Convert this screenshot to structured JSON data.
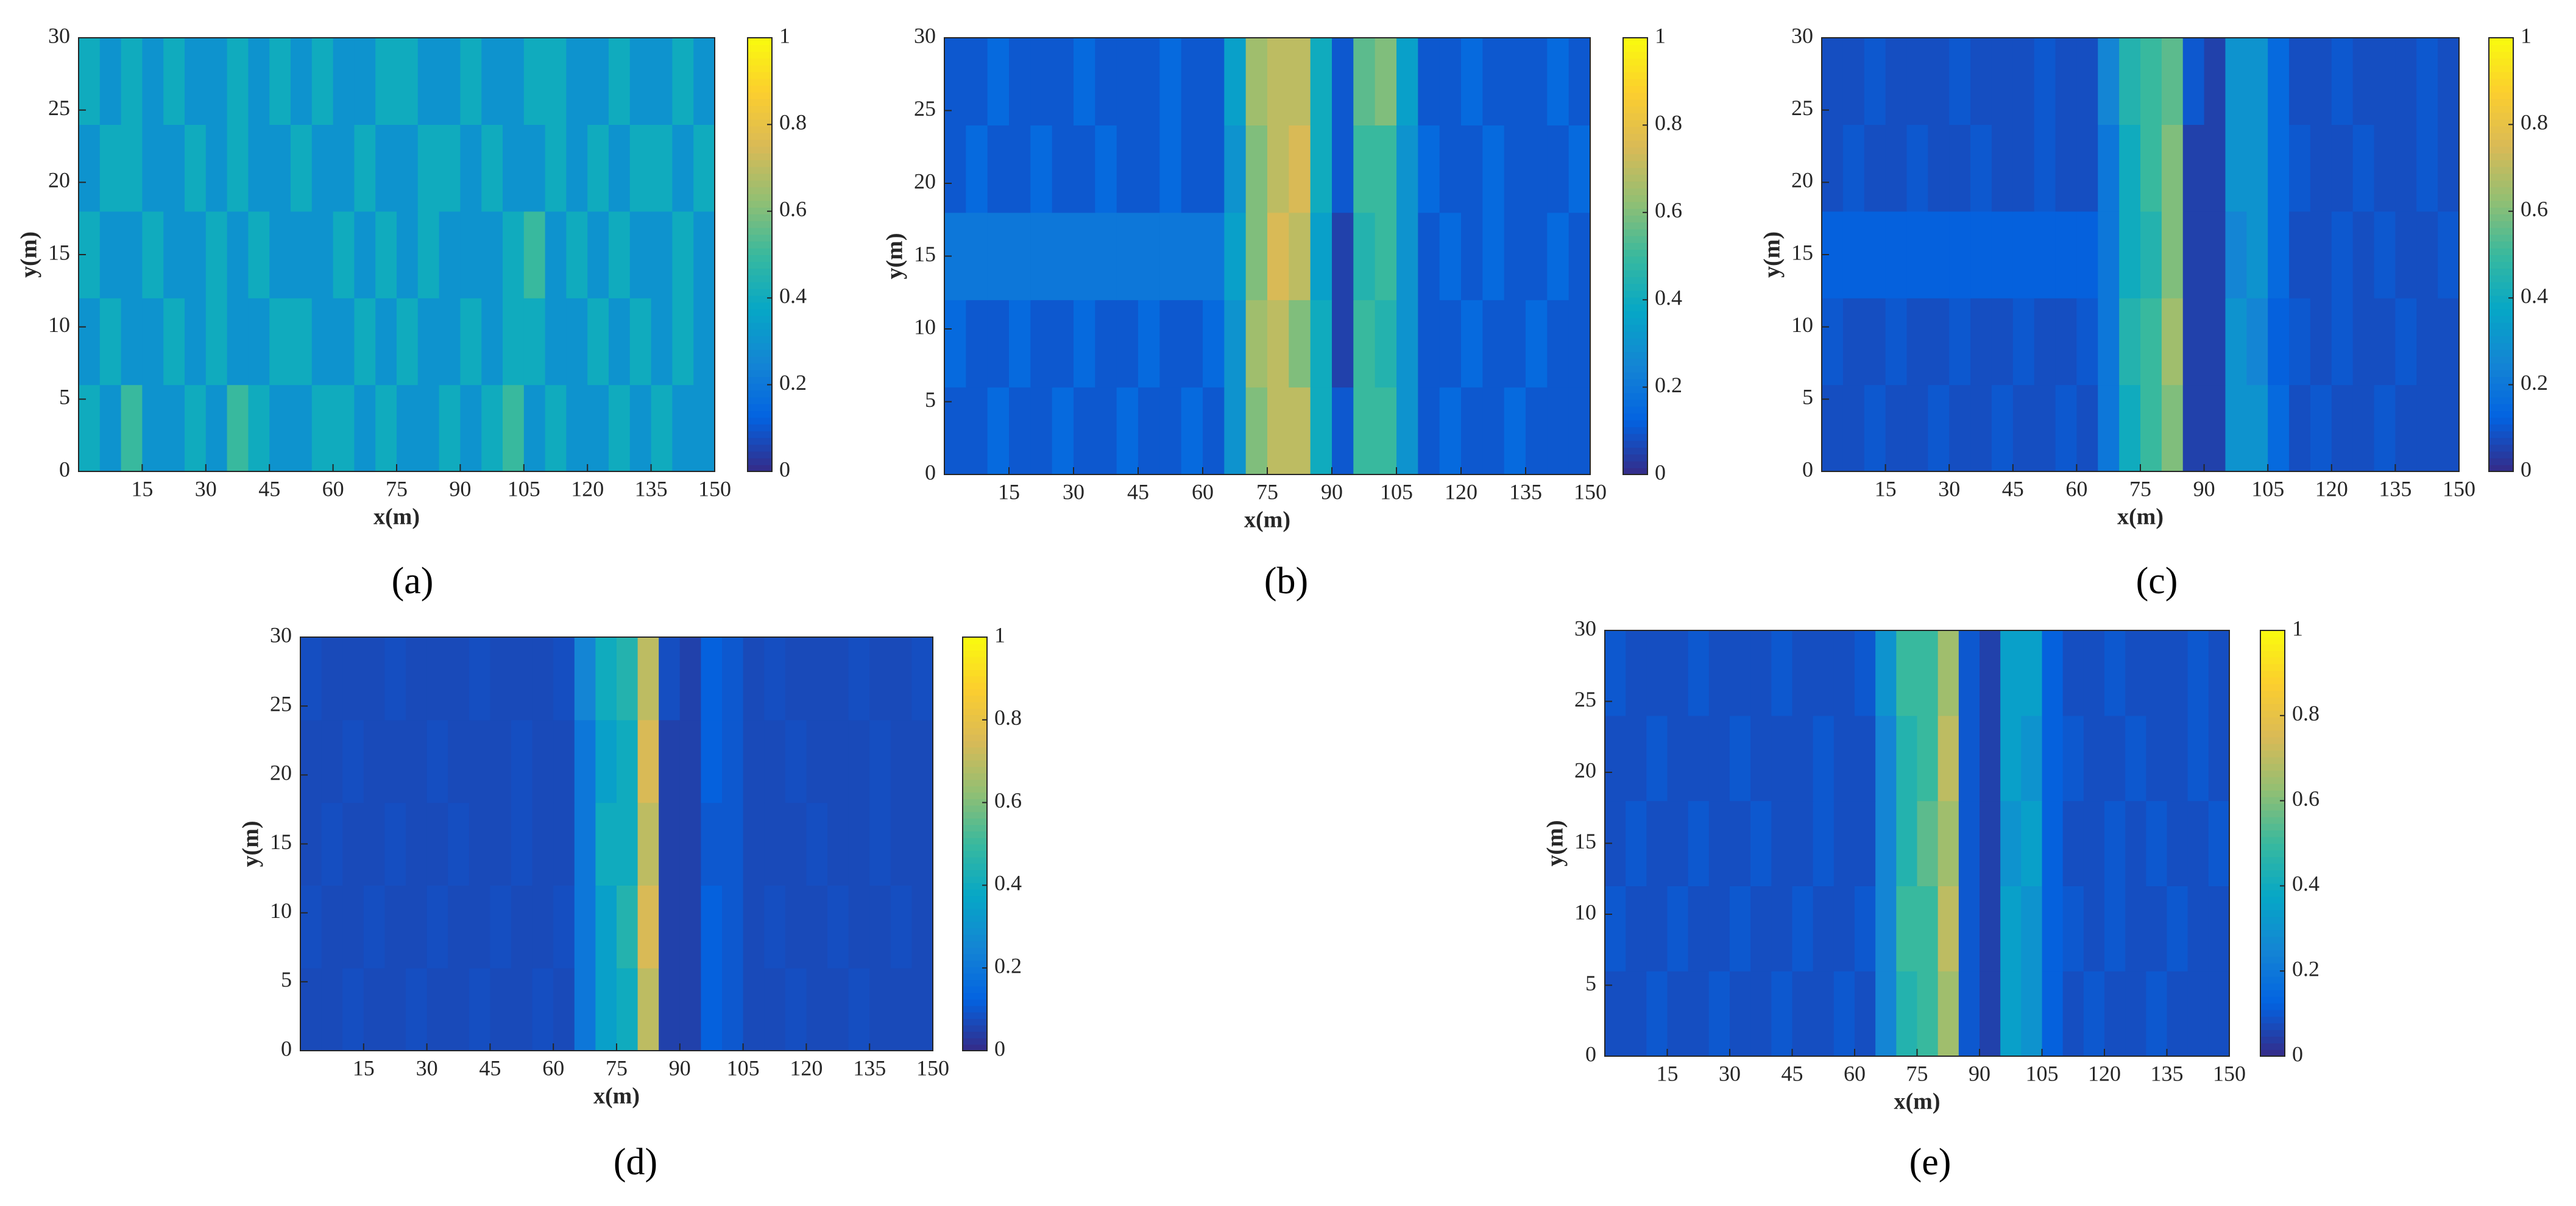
{
  "chart_data": [
    {
      "type": "heatmap",
      "label": "(a)",
      "xlabel": "x(m)",
      "ylabel": "y(m)",
      "x": [
        2.5,
        7.5,
        12.5,
        17.5,
        22.5,
        27.5,
        32.5,
        37.5,
        42.5,
        47.5,
        52.5,
        57.5,
        62.5,
        67.5,
        72.5,
        77.5,
        82.5,
        87.5,
        92.5,
        97.5,
        102.5,
        107.5,
        112.5,
        117.5,
        122.5,
        127.5,
        132.5,
        137.5,
        142.5,
        147.5
      ],
      "y": [
        3,
        9,
        15,
        21,
        27
      ],
      "z": [
        [
          0.4,
          0.3,
          0.5,
          0.3,
          0.3,
          0.4,
          0.3,
          0.5,
          0.4,
          0.3,
          0.3,
          0.4,
          0.4,
          0.3,
          0.4,
          0.3,
          0.3,
          0.4,
          0.3,
          0.4,
          0.5,
          0.3,
          0.4,
          0.3,
          0.3,
          0.4,
          0.3,
          0.4,
          0.3,
          0.3
        ],
        [
          0.3,
          0.4,
          0.3,
          0.3,
          0.4,
          0.3,
          0.4,
          0.3,
          0.3,
          0.4,
          0.4,
          0.3,
          0.3,
          0.4,
          0.3,
          0.4,
          0.3,
          0.3,
          0.4,
          0.3,
          0.4,
          0.4,
          0.3,
          0.3,
          0.4,
          0.3,
          0.4,
          0.3,
          0.4,
          0.3
        ],
        [
          0.4,
          0.3,
          0.3,
          0.4,
          0.3,
          0.3,
          0.4,
          0.3,
          0.4,
          0.3,
          0.3,
          0.3,
          0.4,
          0.3,
          0.4,
          0.3,
          0.4,
          0.3,
          0.3,
          0.3,
          0.4,
          0.5,
          0.3,
          0.4,
          0.3,
          0.4,
          0.3,
          0.3,
          0.4,
          0.3
        ],
        [
          0.3,
          0.4,
          0.4,
          0.3,
          0.3,
          0.4,
          0.3,
          0.4,
          0.3,
          0.3,
          0.4,
          0.3,
          0.3,
          0.4,
          0.3,
          0.3,
          0.4,
          0.4,
          0.3,
          0.4,
          0.3,
          0.3,
          0.4,
          0.3,
          0.4,
          0.3,
          0.4,
          0.4,
          0.3,
          0.4
        ],
        [
          0.4,
          0.3,
          0.4,
          0.3,
          0.4,
          0.3,
          0.3,
          0.4,
          0.3,
          0.4,
          0.3,
          0.4,
          0.3,
          0.3,
          0.4,
          0.4,
          0.3,
          0.3,
          0.4,
          0.3,
          0.3,
          0.4,
          0.4,
          0.3,
          0.3,
          0.4,
          0.3,
          0.3,
          0.4,
          0.3
        ]
      ],
      "xlim": [
        0,
        150
      ],
      "ylim": [
        0,
        30
      ],
      "xticks": [
        15,
        30,
        45,
        60,
        75,
        90,
        105,
        120,
        135,
        150
      ],
      "yticks": [
        0,
        5,
        10,
        15,
        20,
        25,
        30
      ],
      "colormap": "parula",
      "clim": [
        0,
        1
      ],
      "cticks": [
        0,
        0.2,
        0.4,
        0.6,
        0.8,
        1
      ]
    },
    {
      "type": "heatmap",
      "label": "(b)",
      "xlabel": "x(m)",
      "ylabel": "y(m)",
      "x": [
        2.5,
        7.5,
        12.5,
        17.5,
        22.5,
        27.5,
        32.5,
        37.5,
        42.5,
        47.5,
        52.5,
        57.5,
        62.5,
        67.5,
        72.5,
        77.5,
        82.5,
        87.5,
        92.5,
        97.5,
        102.5,
        107.5,
        112.5,
        117.5,
        122.5,
        127.5,
        132.5,
        137.5,
        142.5,
        147.5
      ],
      "y": [
        3,
        9,
        15,
        21,
        27
      ],
      "z": [
        [
          0.1,
          0.1,
          0.15,
          0.1,
          0.1,
          0.15,
          0.1,
          0.1,
          0.15,
          0.1,
          0.1,
          0.15,
          0.1,
          0.3,
          0.6,
          0.7,
          0.7,
          0.4,
          0.1,
          0.5,
          0.5,
          0.3,
          0.1,
          0.15,
          0.1,
          0.1,
          0.15,
          0.1,
          0.1,
          0.1
        ],
        [
          0.15,
          0.1,
          0.1,
          0.15,
          0.1,
          0.1,
          0.15,
          0.1,
          0.1,
          0.15,
          0.1,
          0.1,
          0.15,
          0.3,
          0.65,
          0.7,
          0.6,
          0.4,
          0.05,
          0.5,
          0.45,
          0.3,
          0.1,
          0.1,
          0.15,
          0.1,
          0.1,
          0.15,
          0.1,
          0.1
        ],
        [
          0.2,
          0.2,
          0.2,
          0.2,
          0.2,
          0.2,
          0.2,
          0.2,
          0.2,
          0.2,
          0.2,
          0.2,
          0.2,
          0.35,
          0.6,
          0.75,
          0.7,
          0.35,
          0.05,
          0.45,
          0.5,
          0.3,
          0.1,
          0.15,
          0.1,
          0.15,
          0.1,
          0.1,
          0.15,
          0.1
        ],
        [
          0.1,
          0.15,
          0.1,
          0.1,
          0.15,
          0.1,
          0.1,
          0.15,
          0.1,
          0.1,
          0.15,
          0.1,
          0.1,
          0.3,
          0.6,
          0.7,
          0.75,
          0.4,
          0.1,
          0.5,
          0.5,
          0.3,
          0.15,
          0.1,
          0.1,
          0.15,
          0.1,
          0.1,
          0.1,
          0.15
        ],
        [
          0.1,
          0.1,
          0.15,
          0.1,
          0.1,
          0.1,
          0.15,
          0.1,
          0.1,
          0.1,
          0.15,
          0.1,
          0.1,
          0.35,
          0.65,
          0.7,
          0.7,
          0.4,
          0.1,
          0.55,
          0.6,
          0.35,
          0.1,
          0.1,
          0.15,
          0.1,
          0.1,
          0.1,
          0.15,
          0.1
        ]
      ],
      "xlim": [
        0,
        150
      ],
      "ylim": [
        0,
        30
      ],
      "xticks": [
        15,
        30,
        45,
        60,
        75,
        90,
        105,
        120,
        135,
        150
      ],
      "yticks": [
        0,
        5,
        10,
        15,
        20,
        25,
        30
      ],
      "colormap": "parula",
      "clim": [
        0,
        1
      ],
      "cticks": [
        0,
        0.2,
        0.4,
        0.6,
        0.8,
        1
      ]
    },
    {
      "type": "heatmap",
      "label": "(c)",
      "xlabel": "x(m)",
      "ylabel": "y(m)",
      "x": [
        2.5,
        7.5,
        12.5,
        17.5,
        22.5,
        27.5,
        32.5,
        37.5,
        42.5,
        47.5,
        52.5,
        57.5,
        62.5,
        67.5,
        72.5,
        77.5,
        82.5,
        87.5,
        92.5,
        97.5,
        102.5,
        107.5,
        112.5,
        117.5,
        122.5,
        127.5,
        132.5,
        137.5,
        142.5,
        147.5
      ],
      "y": [
        3,
        9,
        15,
        21,
        27
      ],
      "z": [
        [
          0.08,
          0.08,
          0.1,
          0.08,
          0.08,
          0.1,
          0.08,
          0.08,
          0.1,
          0.08,
          0.08,
          0.1,
          0.08,
          0.2,
          0.4,
          0.5,
          0.6,
          0.05,
          0.05,
          0.3,
          0.3,
          0.15,
          0.08,
          0.1,
          0.08,
          0.08,
          0.1,
          0.08,
          0.08,
          0.08
        ],
        [
          0.1,
          0.08,
          0.08,
          0.1,
          0.08,
          0.08,
          0.1,
          0.08,
          0.08,
          0.1,
          0.08,
          0.08,
          0.1,
          0.2,
          0.45,
          0.5,
          0.65,
          0.05,
          0.05,
          0.3,
          0.25,
          0.12,
          0.1,
          0.08,
          0.1,
          0.08,
          0.08,
          0.1,
          0.08,
          0.08
        ],
        [
          0.12,
          0.12,
          0.12,
          0.12,
          0.12,
          0.12,
          0.12,
          0.12,
          0.12,
          0.12,
          0.12,
          0.12,
          0.12,
          0.2,
          0.4,
          0.45,
          0.6,
          0.05,
          0.05,
          0.25,
          0.3,
          0.15,
          0.08,
          0.08,
          0.1,
          0.08,
          0.1,
          0.08,
          0.08,
          0.1
        ],
        [
          0.08,
          0.1,
          0.08,
          0.08,
          0.1,
          0.08,
          0.08,
          0.1,
          0.08,
          0.08,
          0.1,
          0.08,
          0.08,
          0.2,
          0.4,
          0.5,
          0.6,
          0.05,
          0.05,
          0.3,
          0.3,
          0.15,
          0.1,
          0.08,
          0.08,
          0.1,
          0.08,
          0.08,
          0.1,
          0.08
        ],
        [
          0.08,
          0.08,
          0.1,
          0.08,
          0.08,
          0.08,
          0.1,
          0.08,
          0.08,
          0.08,
          0.1,
          0.08,
          0.08,
          0.25,
          0.45,
          0.5,
          0.55,
          0.1,
          0.05,
          0.3,
          0.3,
          0.15,
          0.08,
          0.08,
          0.1,
          0.08,
          0.08,
          0.08,
          0.1,
          0.08
        ]
      ],
      "xlim": [
        0,
        150
      ],
      "ylim": [
        0,
        30
      ],
      "xticks": [
        15,
        30,
        45,
        60,
        75,
        90,
        105,
        120,
        135,
        150
      ],
      "yticks": [
        0,
        5,
        10,
        15,
        20,
        25,
        30
      ],
      "colormap": "parula",
      "clim": [
        0,
        1
      ],
      "cticks": [
        0,
        0.2,
        0.4,
        0.6,
        0.8,
        1
      ]
    },
    {
      "type": "heatmap",
      "label": "(d)",
      "xlabel": "x(m)",
      "ylabel": "y(m)",
      "x": [
        2.5,
        7.5,
        12.5,
        17.5,
        22.5,
        27.5,
        32.5,
        37.5,
        42.5,
        47.5,
        52.5,
        57.5,
        62.5,
        67.5,
        72.5,
        77.5,
        82.5,
        87.5,
        92.5,
        97.5,
        102.5,
        107.5,
        112.5,
        117.5,
        122.5,
        127.5,
        132.5,
        137.5,
        142.5,
        147.5
      ],
      "y": [
        3,
        9,
        15,
        21,
        27
      ],
      "z": [
        [
          0.07,
          0.07,
          0.08,
          0.07,
          0.07,
          0.08,
          0.07,
          0.07,
          0.08,
          0.07,
          0.07,
          0.08,
          0.07,
          0.2,
          0.35,
          0.4,
          0.7,
          0.05,
          0.05,
          0.12,
          0.1,
          0.07,
          0.07,
          0.08,
          0.07,
          0.07,
          0.08,
          0.07,
          0.07,
          0.07
        ],
        [
          0.08,
          0.07,
          0.07,
          0.08,
          0.07,
          0.07,
          0.08,
          0.07,
          0.07,
          0.08,
          0.07,
          0.07,
          0.08,
          0.2,
          0.35,
          0.45,
          0.75,
          0.05,
          0.05,
          0.12,
          0.1,
          0.07,
          0.08,
          0.07,
          0.07,
          0.08,
          0.07,
          0.07,
          0.08,
          0.07
        ],
        [
          0.07,
          0.08,
          0.07,
          0.07,
          0.08,
          0.07,
          0.07,
          0.08,
          0.07,
          0.07,
          0.08,
          0.07,
          0.07,
          0.2,
          0.4,
          0.4,
          0.7,
          0.05,
          0.05,
          0.1,
          0.1,
          0.07,
          0.07,
          0.07,
          0.08,
          0.07,
          0.07,
          0.08,
          0.07,
          0.07
        ],
        [
          0.07,
          0.07,
          0.08,
          0.07,
          0.07,
          0.07,
          0.08,
          0.07,
          0.07,
          0.07,
          0.08,
          0.07,
          0.07,
          0.2,
          0.35,
          0.4,
          0.75,
          0.05,
          0.05,
          0.12,
          0.1,
          0.07,
          0.07,
          0.08,
          0.07,
          0.07,
          0.07,
          0.08,
          0.07,
          0.07
        ],
        [
          0.08,
          0.07,
          0.07,
          0.07,
          0.08,
          0.07,
          0.07,
          0.07,
          0.08,
          0.07,
          0.07,
          0.07,
          0.08,
          0.25,
          0.4,
          0.45,
          0.7,
          0.08,
          0.05,
          0.12,
          0.1,
          0.07,
          0.08,
          0.07,
          0.07,
          0.07,
          0.08,
          0.07,
          0.07,
          0.08
        ]
      ],
      "xlim": [
        0,
        150
      ],
      "ylim": [
        0,
        30
      ],
      "xticks": [
        15,
        30,
        45,
        60,
        75,
        90,
        105,
        120,
        135,
        150
      ],
      "yticks": [
        0,
        5,
        10,
        15,
        20,
        25,
        30
      ],
      "colormap": "parula",
      "clim": [
        0,
        1
      ],
      "cticks": [
        0,
        0.2,
        0.4,
        0.6,
        0.8,
        1
      ]
    },
    {
      "type": "heatmap",
      "label": "(e)",
      "xlabel": "x(m)",
      "ylabel": "y(m)",
      "x": [
        2.5,
        7.5,
        12.5,
        17.5,
        22.5,
        27.5,
        32.5,
        37.5,
        42.5,
        47.5,
        52.5,
        57.5,
        62.5,
        67.5,
        72.5,
        77.5,
        82.5,
        87.5,
        92.5,
        97.5,
        102.5,
        107.5,
        112.5,
        117.5,
        122.5,
        127.5,
        132.5,
        137.5,
        142.5,
        147.5
      ],
      "y": [
        3,
        9,
        15,
        21,
        27
      ],
      "z": [
        [
          0.08,
          0.08,
          0.1,
          0.08,
          0.08,
          0.1,
          0.08,
          0.08,
          0.1,
          0.08,
          0.08,
          0.1,
          0.08,
          0.25,
          0.45,
          0.5,
          0.65,
          0.1,
          0.05,
          0.35,
          0.3,
          0.12,
          0.08,
          0.1,
          0.08,
          0.08,
          0.1,
          0.08,
          0.08,
          0.08
        ],
        [
          0.1,
          0.08,
          0.08,
          0.1,
          0.08,
          0.08,
          0.1,
          0.08,
          0.08,
          0.1,
          0.08,
          0.08,
          0.1,
          0.25,
          0.5,
          0.5,
          0.7,
          0.1,
          0.05,
          0.35,
          0.3,
          0.12,
          0.1,
          0.08,
          0.1,
          0.08,
          0.08,
          0.1,
          0.08,
          0.08
        ],
        [
          0.08,
          0.1,
          0.08,
          0.08,
          0.1,
          0.08,
          0.08,
          0.1,
          0.08,
          0.08,
          0.1,
          0.08,
          0.08,
          0.25,
          0.45,
          0.55,
          0.65,
          0.1,
          0.05,
          0.3,
          0.35,
          0.12,
          0.08,
          0.08,
          0.1,
          0.08,
          0.1,
          0.08,
          0.08,
          0.1
        ],
        [
          0.08,
          0.08,
          0.1,
          0.08,
          0.08,
          0.08,
          0.1,
          0.08,
          0.08,
          0.08,
          0.1,
          0.08,
          0.08,
          0.25,
          0.45,
          0.5,
          0.7,
          0.1,
          0.05,
          0.35,
          0.3,
          0.12,
          0.1,
          0.08,
          0.08,
          0.1,
          0.08,
          0.08,
          0.1,
          0.08
        ],
        [
          0.1,
          0.08,
          0.08,
          0.08,
          0.1,
          0.08,
          0.08,
          0.08,
          0.1,
          0.08,
          0.08,
          0.08,
          0.1,
          0.3,
          0.5,
          0.5,
          0.65,
          0.1,
          0.05,
          0.35,
          0.35,
          0.12,
          0.08,
          0.08,
          0.1,
          0.08,
          0.08,
          0.08,
          0.1,
          0.08
        ]
      ],
      "xlim": [
        0,
        150
      ],
      "ylim": [
        0,
        30
      ],
      "xticks": [
        15,
        30,
        45,
        60,
        75,
        90,
        105,
        120,
        135,
        150
      ],
      "yticks": [
        0,
        5,
        10,
        15,
        20,
        25,
        30
      ],
      "colormap": "parula",
      "clim": [
        0,
        1
      ],
      "cticks": [
        0,
        0.2,
        0.4,
        0.6,
        0.8,
        1
      ]
    }
  ]
}
